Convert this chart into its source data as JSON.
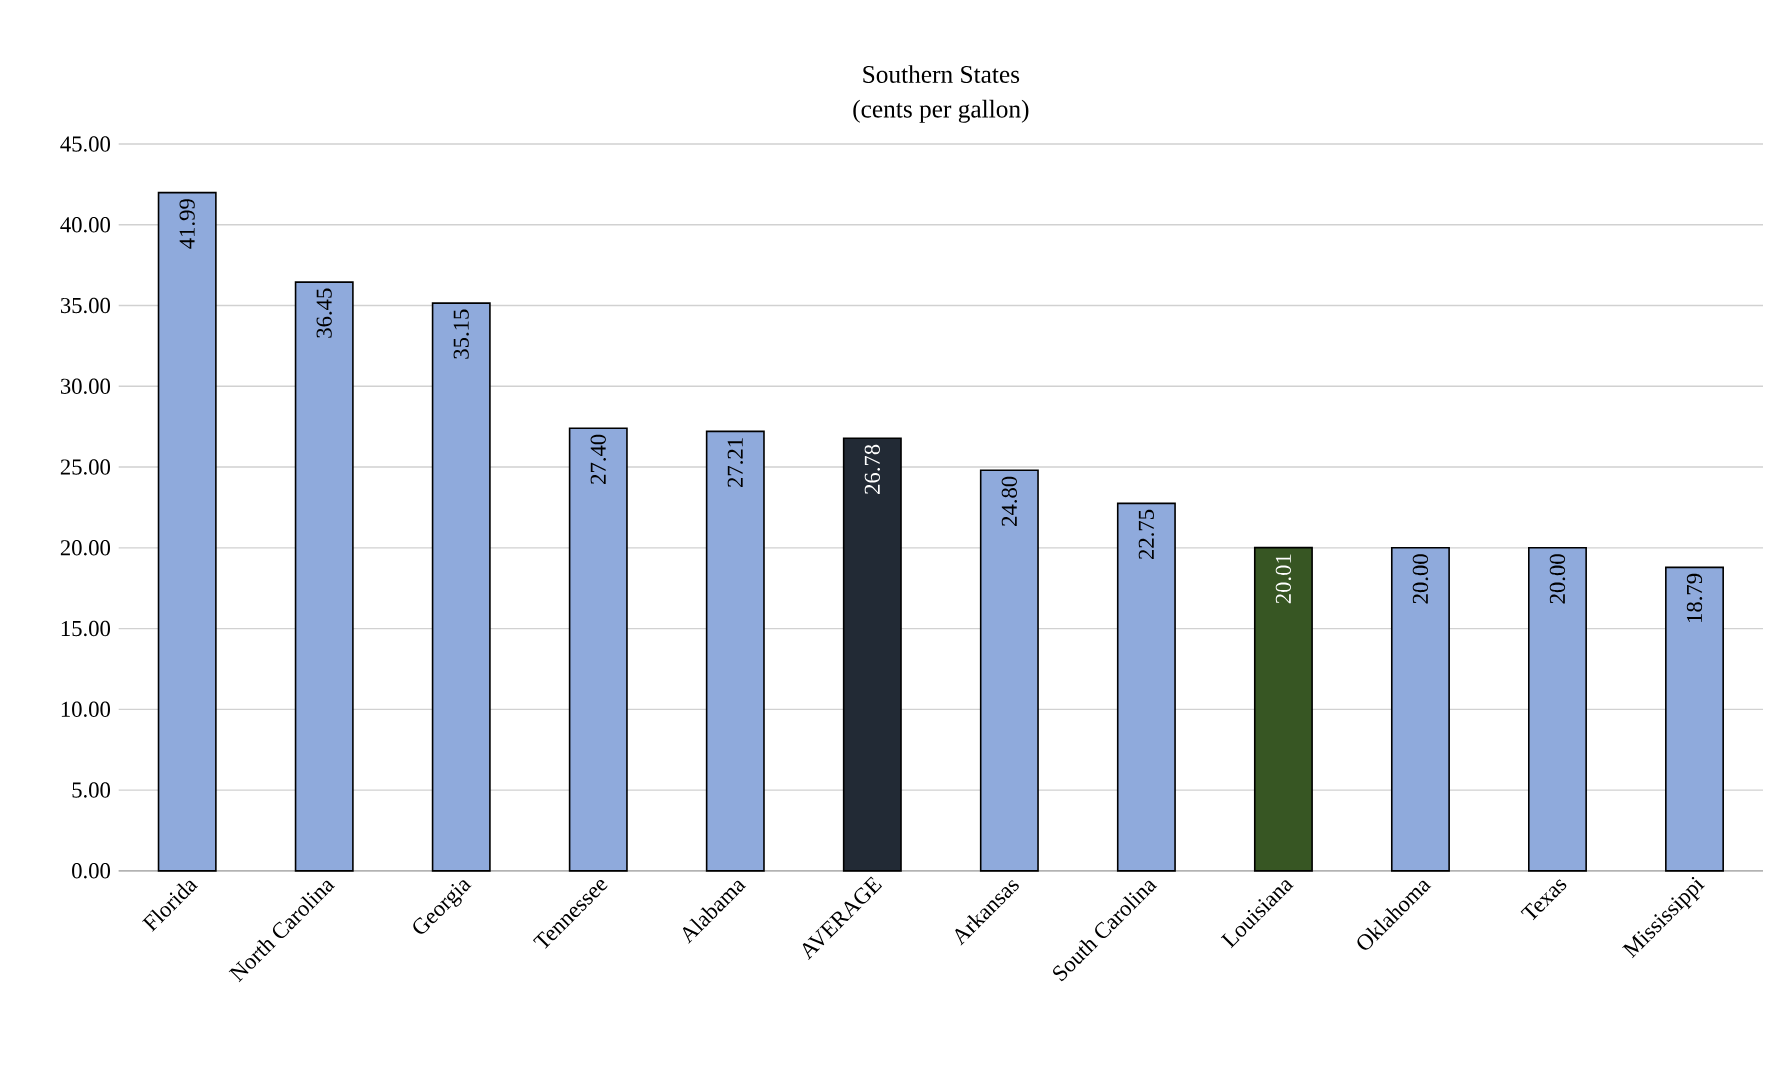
{
  "chart_data": {
    "type": "bar",
    "title": "Southern States",
    "subtitle": "(cents per gallon)",
    "categories": [
      "Florida",
      "North Carolina",
      "Georgia",
      "Tennessee",
      "Alabama",
      "AVERAGE",
      "Arkansas",
      "South Carolina",
      "Louisiana",
      "Oklahoma",
      "Texas",
      "Mississippi"
    ],
    "values": [
      41.99,
      36.45,
      35.15,
      27.4,
      27.21,
      26.78,
      24.8,
      22.75,
      20.01,
      20.0,
      20.0,
      18.79
    ],
    "value_labels": [
      "41.99",
      "36.45",
      "35.15",
      "27.40",
      "27.21",
      "26.78",
      "24.80",
      "22.75",
      "20.01",
      "20.00",
      "20.00",
      "18.79"
    ],
    "colors": [
      "#8faadc",
      "#8faadc",
      "#8faadc",
      "#8faadc",
      "#8faadc",
      "#222a35",
      "#8faadc",
      "#8faadc",
      "#375623",
      "#8faadc",
      "#8faadc",
      "#8faadc"
    ],
    "ylim": [
      0,
      45
    ],
    "yticks": [
      {
        "value": 0,
        "label": "0.00"
      },
      {
        "value": 5,
        "label": "5.00"
      },
      {
        "value": 10,
        "label": "10.00"
      },
      {
        "value": 15,
        "label": "15.00"
      },
      {
        "value": 20,
        "label": "20.00"
      },
      {
        "value": 25,
        "label": "25.00"
      },
      {
        "value": 30,
        "label": "30.00"
      },
      {
        "value": 35,
        "label": "35.00"
      },
      {
        "value": 40,
        "label": "40.00"
      },
      {
        "value": 45,
        "label": "45.00"
      }
    ],
    "grid": "y"
  }
}
